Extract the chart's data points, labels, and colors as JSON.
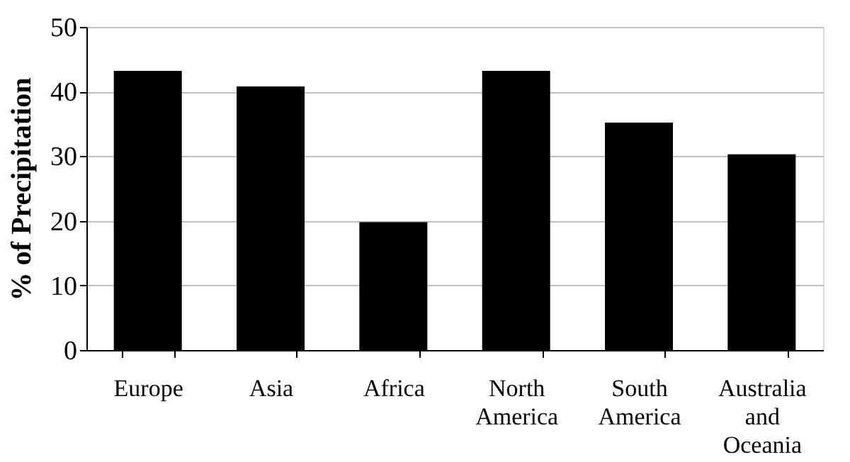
{
  "chart_data": {
    "type": "bar",
    "ylabel": "% of Precipitation",
    "categories": [
      "Europe",
      "Asia",
      "Africa",
      "North America",
      "South America",
      "Australia and Oceania"
    ],
    "values": [
      43.2,
      40.8,
      19.8,
      43.2,
      35.2,
      30.3
    ],
    "color": "#000000",
    "ylim": [
      0,
      50
    ],
    "yticks": [
      0,
      10,
      20,
      30,
      40,
      50
    ],
    "grid": "y"
  }
}
